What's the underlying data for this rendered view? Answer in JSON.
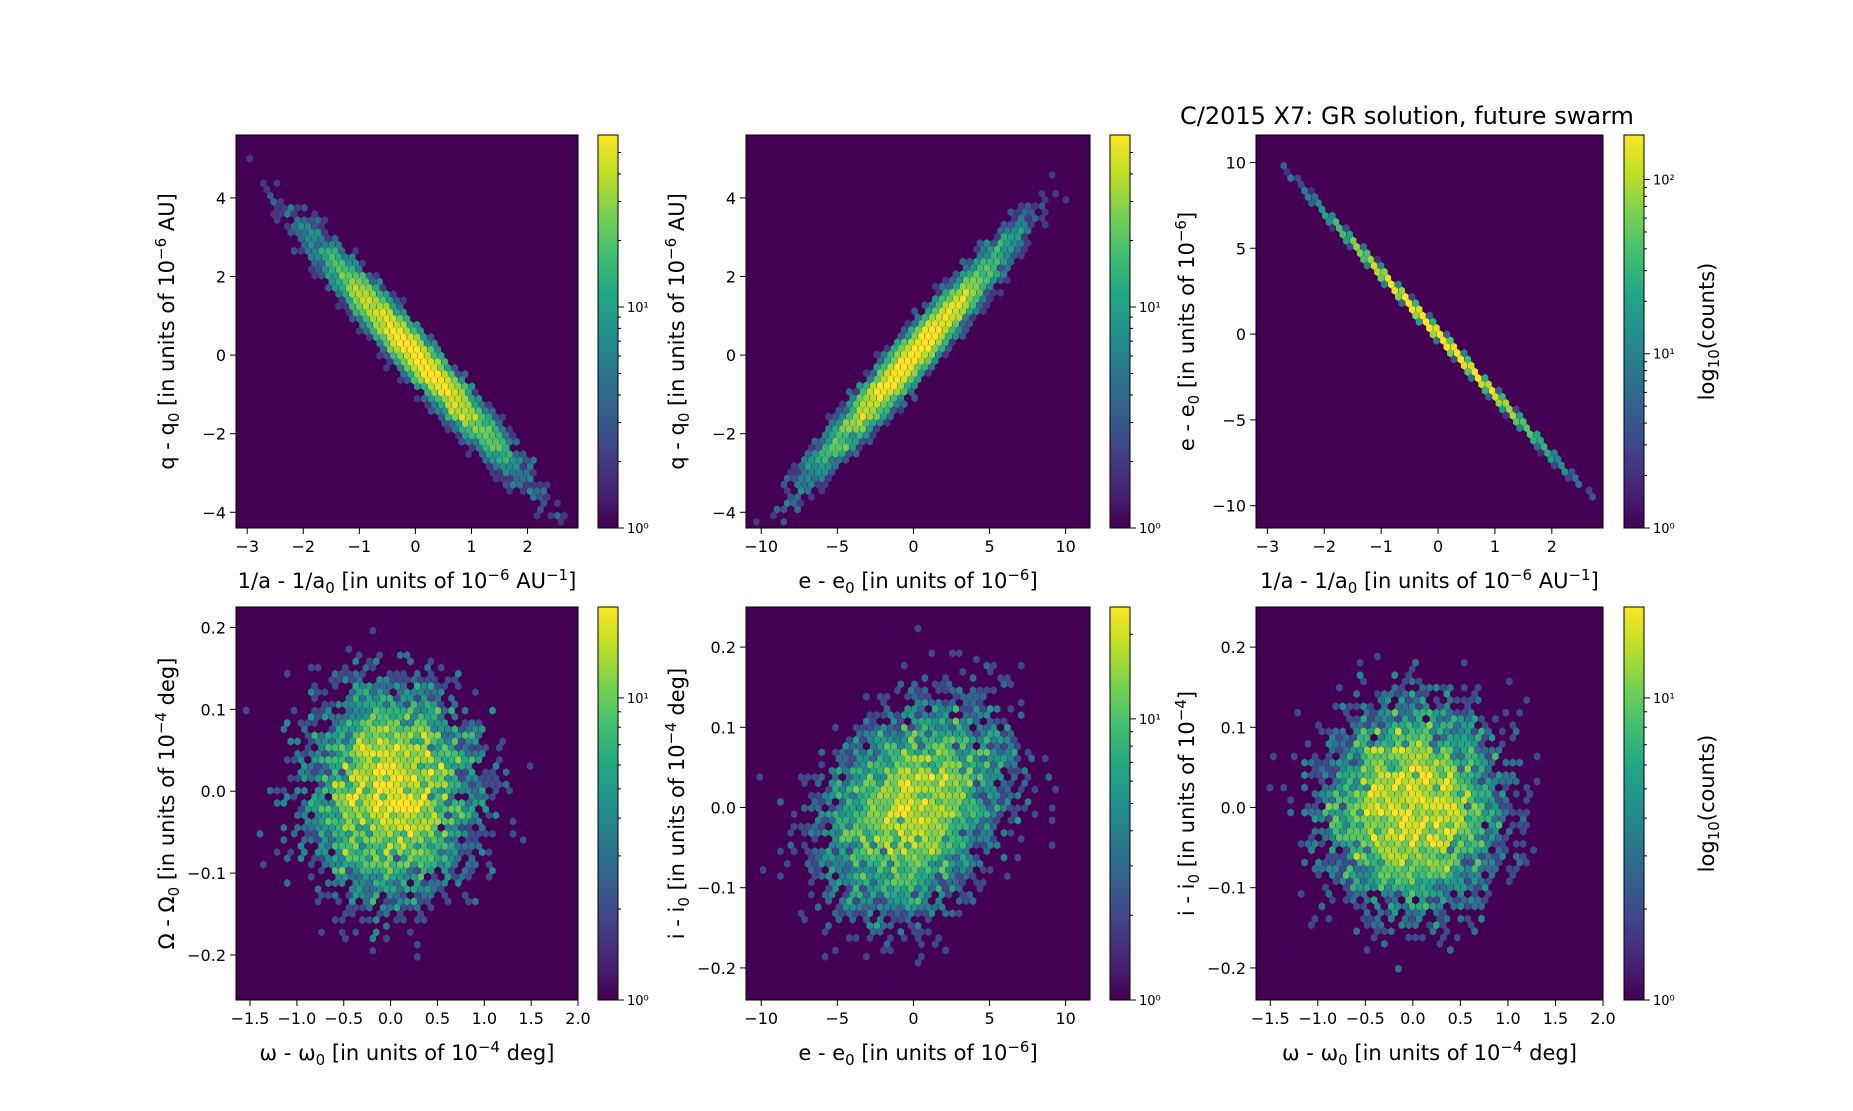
{
  "figure": {
    "title": "C/2015 X7:  GR solution, future swarm",
    "colormap": [
      "#440154",
      "#482475",
      "#414487",
      "#355f8d",
      "#2a788e",
      "#21918c",
      "#22a884",
      "#44bf70",
      "#7ad151",
      "#bddf26",
      "#fde725"
    ],
    "background_color": "#440154"
  },
  "chart_data": [
    {
      "type": "heatmap",
      "subtype": "hexbin",
      "xlabel": "1/a - 1/a0 [in units of 10-6 AU-1]",
      "ylabel": "q - q0 [in units of 10-6 AU]",
      "xlim": [
        -3.2,
        2.9
      ],
      "ylim": [
        -4.4,
        5.6
      ],
      "xticks": [
        -3,
        -2,
        -1,
        0,
        1,
        2
      ],
      "yticks": [
        -4,
        -2,
        0,
        2,
        4
      ],
      "xticklabels": [
        "−3",
        "−2",
        "−1",
        "0",
        "1",
        "2"
      ],
      "yticklabels": [
        "−4",
        "−2",
        "0",
        "2",
        "4"
      ],
      "distribution": {
        "mean": [
          0,
          0
        ],
        "sigma": [
          0.9,
          1.45
        ],
        "corr": -0.97
      },
      "colorbar": {
        "scale": "log",
        "range": [
          1,
          60
        ],
        "label": "",
        "ticks": [
          1,
          10
        ],
        "ticklabels": [
          "10⁰",
          "10¹"
        ]
      }
    },
    {
      "type": "heatmap",
      "subtype": "hexbin",
      "xlabel": "e - e0 [in units of 10-6]",
      "ylabel": "q - q0 [in units of 10-6 AU]",
      "xlim": [
        -11,
        11.6
      ],
      "ylim": [
        -4.4,
        5.6
      ],
      "xticks": [
        -10,
        -5,
        0,
        5,
        10
      ],
      "yticks": [
        -4,
        -2,
        0,
        2,
        4
      ],
      "xticklabels": [
        "−10",
        "−5",
        "0",
        "5",
        "10"
      ],
      "yticklabels": [
        "−4",
        "−2",
        "0",
        "2",
        "4"
      ],
      "distribution": {
        "mean": [
          0,
          0
        ],
        "sigma": [
          3.2,
          1.45
        ],
        "corr": 0.97
      },
      "colorbar": {
        "scale": "log",
        "range": [
          1,
          60
        ],
        "label": "",
        "ticks": [
          1,
          10
        ],
        "ticklabels": [
          "10⁰",
          "10¹"
        ]
      }
    },
    {
      "type": "heatmap",
      "subtype": "hexbin",
      "title": "C/2015 X7:  GR solution, future swarm",
      "xlabel": "1/a - 1/a0 [in units of 10-6 AU-1]",
      "ylabel": "e - e0 [in units of 10-6]",
      "xlim": [
        -3.2,
        2.9
      ],
      "ylim": [
        -11.3,
        11.6
      ],
      "xticks": [
        -3,
        -2,
        -1,
        0,
        1,
        2
      ],
      "yticks": [
        -10,
        -5,
        0,
        5,
        10
      ],
      "xticklabels": [
        "−3",
        "−2",
        "−1",
        "0",
        "1",
        "2"
      ],
      "yticklabels": [
        "−10",
        "−5",
        "0",
        "5",
        "10"
      ],
      "distribution": {
        "mean": [
          0,
          0
        ],
        "sigma": [
          0.9,
          3.2
        ],
        "corr": -0.9995
      },
      "colorbar": {
        "scale": "log",
        "range": [
          1,
          180
        ],
        "label": "log10(counts)",
        "ticks": [
          1,
          10,
          100
        ],
        "ticklabels": [
          "10⁰",
          "10¹",
          "10²"
        ]
      }
    },
    {
      "type": "heatmap",
      "subtype": "hexbin",
      "xlabel": "ω - ω0 [in units of 10-4 deg]",
      "ylabel": "Ω - Ω0 [in units of 10-4 deg]",
      "xlim": [
        -1.65,
        2.0
      ],
      "ylim": [
        -0.255,
        0.225
      ],
      "xticks": [
        -1.5,
        -1.0,
        -0.5,
        0.0,
        0.5,
        1.0,
        1.5,
        2.0
      ],
      "yticks": [
        -0.2,
        -0.1,
        0.0,
        0.1,
        0.2
      ],
      "xticklabels": [
        "−1.5",
        "−1.0",
        "−0.5",
        "0.0",
        "0.5",
        "1.0",
        "1.5",
        "2.0"
      ],
      "yticklabels": [
        "−0.2",
        "−0.1",
        "0.0",
        "0.1",
        "0.2"
      ],
      "distribution": {
        "mean": [
          0,
          0
        ],
        "sigma": [
          0.5,
          0.07
        ],
        "corr": 0.0
      },
      "colorbar": {
        "scale": "log",
        "range": [
          1,
          20
        ],
        "label": "",
        "ticks": [
          1,
          10
        ],
        "ticklabels": [
          "10⁰",
          "10¹"
        ]
      }
    },
    {
      "type": "heatmap",
      "subtype": "hexbin",
      "xlabel": "e - e0 [in units of 10-6]",
      "ylabel": "i - i0 [in units of 10-4 deg]",
      "xlim": [
        -11,
        11.6
      ],
      "ylim": [
        -0.24,
        0.25
      ],
      "xticks": [
        -10,
        -5,
        0,
        5,
        10
      ],
      "yticks": [
        -0.2,
        -0.1,
        0.0,
        0.1,
        0.2
      ],
      "xticklabels": [
        "−10",
        "−5",
        "0",
        "5",
        "10"
      ],
      "yticklabels": [
        "−0.2",
        "−0.1",
        "0.0",
        "0.1",
        "0.2"
      ],
      "distribution": {
        "mean": [
          0,
          0
        ],
        "sigma": [
          3.2,
          0.07
        ],
        "corr": 0.3
      },
      "colorbar": {
        "scale": "log",
        "range": [
          1,
          25
        ],
        "label": "",
        "ticks": [
          1,
          10
        ],
        "ticklabels": [
          "10⁰",
          "10¹"
        ]
      }
    },
    {
      "type": "heatmap",
      "subtype": "hexbin",
      "xlabel": "ω - ω0 [in units of 10-4 deg]",
      "ylabel": "i - i0 [in units of 10-4]",
      "xlim": [
        -1.65,
        2.0
      ],
      "ylim": [
        -0.24,
        0.25
      ],
      "xticks": [
        -1.5,
        -1.0,
        -0.5,
        0.0,
        0.5,
        1.0,
        1.5,
        2.0
      ],
      "yticks": [
        -0.2,
        -0.1,
        0.0,
        0.1,
        0.2
      ],
      "xticklabels": [
        "−1.5",
        "−1.0",
        "−0.5",
        "0.0",
        "0.5",
        "1.0",
        "1.5",
        "2.0"
      ],
      "yticklabels": [
        "−0.2",
        "−0.1",
        "0.0",
        "0.1",
        "0.2"
      ],
      "distribution": {
        "mean": [
          0,
          0
        ],
        "sigma": [
          0.5,
          0.07
        ],
        "corr": 0.0
      },
      "colorbar": {
        "scale": "log",
        "range": [
          1,
          20
        ],
        "label": "log10(counts)",
        "ticks": [
          1,
          10
        ],
        "ticklabels": [
          "10⁰",
          "10¹"
        ]
      }
    }
  ]
}
